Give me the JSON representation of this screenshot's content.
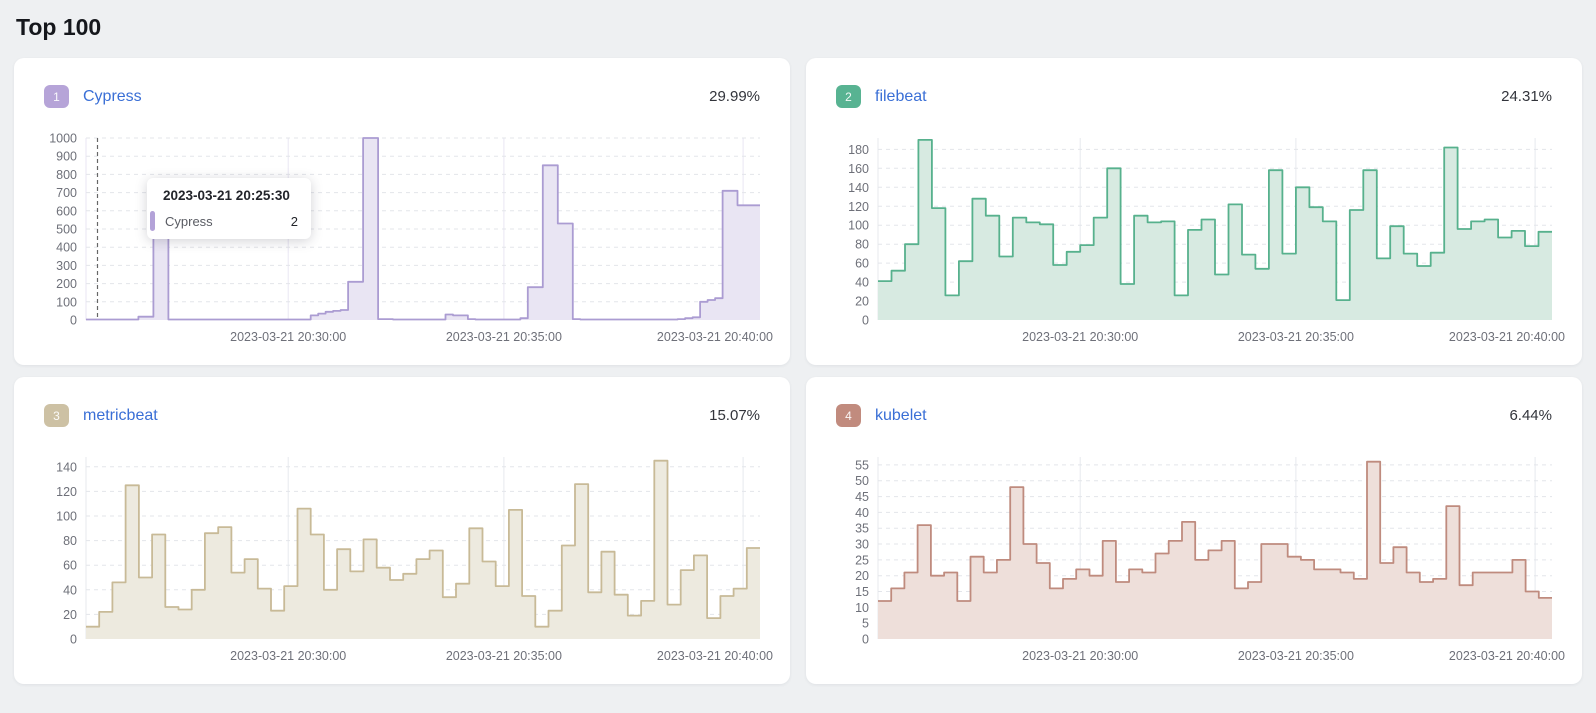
{
  "page": {
    "title": "Top 100"
  },
  "colors": {
    "page_bg": "#eef0f2",
    "card_bg": "#ffffff",
    "heading": "#15171c",
    "link": "#3a6fd6",
    "percent_text": "#32343b",
    "axis_text": "#6e7079",
    "h_grid": "#e3e5ea",
    "cursor": "#666666"
  },
  "tooltip": {
    "title": "2023-03-21 20:25:30",
    "series_label": "Cypress",
    "value": "2",
    "accent_color": "#b3a2d8"
  },
  "cards": [
    {
      "rank": "1",
      "percent": "29.99%",
      "badge_bg": "#b6a4d8",
      "line_color": "#ab9cd2",
      "fill_color": "#e9e5f3",
      "v_grid_color": "#e9e6f3",
      "has_cursor": true
    },
    {
      "rank": "2",
      "percent": "24.31%",
      "badge_bg": "#58b392",
      "line_color": "#57b18d",
      "fill_color": "#d7eae1",
      "v_grid_color": "#e7eaee",
      "has_cursor": false
    },
    {
      "rank": "3",
      "percent": "15.07%",
      "badge_bg": "#cdc1a4",
      "line_color": "#c8ba97",
      "fill_color": "#edeadf",
      "v_grid_color": "#e7eaee",
      "has_cursor": false
    },
    {
      "rank": "4",
      "percent": "6.44%",
      "badge_bg": "#c18b7e",
      "line_color": "#bf8b7e",
      "fill_color": "#eedfda",
      "v_grid_color": "#e7eaee",
      "has_cursor": false
    }
  ],
  "chart_data": [
    {
      "type": "area",
      "step": true,
      "title": "Cypress",
      "value_label": "29.99%",
      "x_tick_labels": [
        "2023-03-21 20:30:00",
        "2023-03-21 20:35:00",
        "2023-03-21 20:40:00"
      ],
      "y_ticks": [
        0,
        100,
        200,
        300,
        400,
        500,
        600,
        700,
        800,
        900,
        1000
      ],
      "ylim": [
        0,
        1000
      ],
      "legend": "none",
      "grid": "dashed-horizontal",
      "values": [
        3,
        3,
        3,
        3,
        3,
        3,
        3,
        18,
        18,
        750,
        750,
        3,
        3,
        3,
        3,
        3,
        3,
        3,
        3,
        3,
        3,
        3,
        3,
        3,
        3,
        3,
        3,
        3,
        3,
        3,
        25,
        35,
        45,
        50,
        55,
        210,
        210,
        1000,
        1000,
        5,
        5,
        3,
        3,
        3,
        3,
        3,
        3,
        3,
        30,
        25,
        25,
        5,
        3,
        3,
        3,
        3,
        3,
        3,
        10,
        180,
        180,
        850,
        850,
        530,
        530,
        5,
        3,
        3,
        3,
        3,
        3,
        3,
        3,
        3,
        3,
        3,
        3,
        3,
        3,
        5,
        10,
        15,
        100,
        110,
        120,
        710,
        710,
        630,
        630,
        630
      ]
    },
    {
      "type": "area",
      "step": true,
      "title": "filebeat",
      "value_label": "24.31%",
      "x_tick_labels": [
        "2023-03-21 20:30:00",
        "2023-03-21 20:35:00",
        "2023-03-21 20:40:00"
      ],
      "y_ticks": [
        0,
        20,
        40,
        60,
        80,
        100,
        120,
        140,
        160,
        180
      ],
      "ylim": [
        0,
        192
      ],
      "legend": "none",
      "grid": "dashed-horizontal",
      "values": [
        41,
        52,
        80,
        190,
        118,
        26,
        62,
        128,
        110,
        67,
        108,
        103,
        101,
        58,
        72,
        79,
        108,
        160,
        38,
        110,
        103,
        104,
        26,
        95,
        106,
        48,
        122,
        69,
        54,
        158,
        70,
        140,
        119,
        104,
        21,
        116,
        158,
        65,
        99,
        70,
        57,
        71,
        182,
        96,
        104,
        106,
        87,
        94,
        78,
        93
      ]
    },
    {
      "type": "area",
      "step": true,
      "title": "metricbeat",
      "value_label": "15.07%",
      "x_tick_labels": [
        "2023-03-21 20:30:00",
        "2023-03-21 20:35:00",
        "2023-03-21 20:40:00"
      ],
      "y_ticks": [
        0,
        20,
        40,
        60,
        80,
        100,
        120,
        140
      ],
      "ylim": [
        0,
        148
      ],
      "legend": "none",
      "grid": "dashed-horizontal",
      "values": [
        10,
        22,
        46,
        125,
        50,
        85,
        26,
        24,
        40,
        86,
        91,
        54,
        65,
        41,
        23,
        43,
        106,
        85,
        40,
        73,
        55,
        81,
        58,
        48,
        53,
        65,
        72,
        34,
        45,
        90,
        63,
        43,
        105,
        35,
        10,
        23,
        76,
        126,
        38,
        71,
        36,
        19,
        31,
        145,
        28,
        56,
        68,
        17,
        35,
        41,
        74
      ]
    },
    {
      "type": "area",
      "step": true,
      "title": "kubelet",
      "value_label": "6.44%",
      "x_tick_labels": [
        "2023-03-21 20:30:00",
        "2023-03-21 20:35:00",
        "2023-03-21 20:40:00"
      ],
      "y_ticks": [
        0,
        5,
        10,
        15,
        20,
        25,
        30,
        35,
        40,
        45,
        50,
        55
      ],
      "ylim": [
        0,
        57.5
      ],
      "legend": "none",
      "grid": "dashed-horizontal",
      "values": [
        12,
        16,
        21,
        36,
        20,
        21,
        12,
        26,
        21,
        25,
        48,
        30,
        24,
        16,
        19,
        22,
        20,
        31,
        18,
        22,
        21,
        27,
        31,
        37,
        25,
        28,
        31,
        16,
        18,
        30,
        30,
        26,
        25,
        22,
        22,
        21,
        19,
        56,
        24,
        29,
        21,
        18,
        19,
        42,
        17,
        21,
        21,
        21,
        25,
        15,
        13
      ]
    }
  ]
}
